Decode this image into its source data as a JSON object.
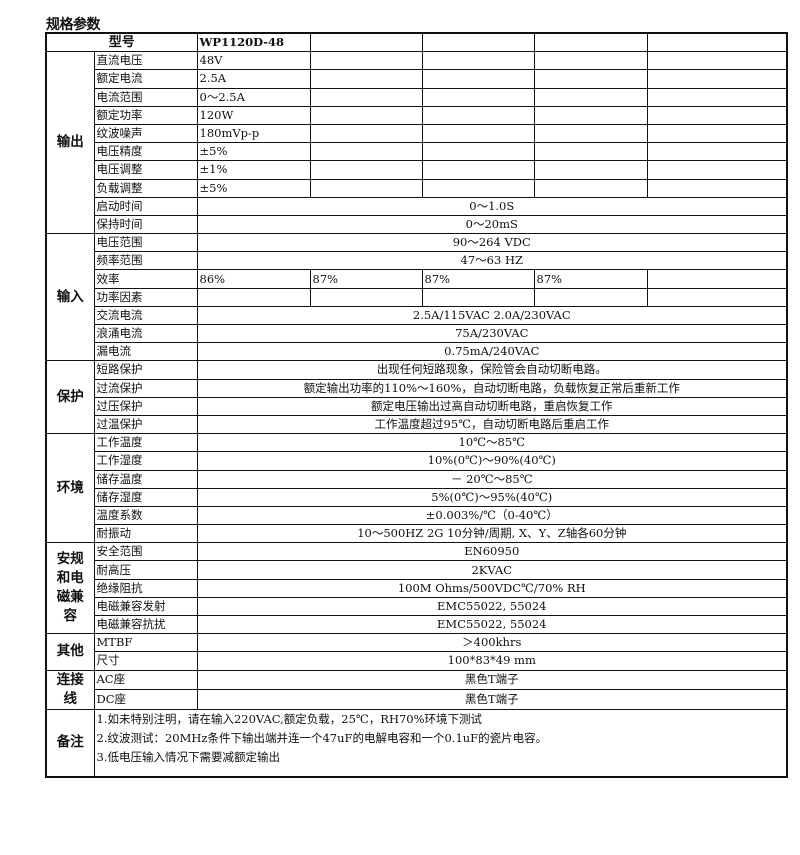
{
  "title": "规格参数",
  "header": {
    "label": "型号",
    "models": [
      "WP1120D-48",
      "",
      "",
      "",
      ""
    ]
  },
  "groups": [
    {
      "label": "输出",
      "rows": [
        {
          "label": "直流电压",
          "cells": [
            "48V",
            "",
            "",
            "",
            ""
          ]
        },
        {
          "label": "额定电流",
          "cells": [
            "2.5A",
            "",
            "",
            "",
            ""
          ]
        },
        {
          "label": "电流范围",
          "cells": [
            "0～2.5A",
            "",
            "",
            "",
            ""
          ]
        },
        {
          "label": "额定功率",
          "cells": [
            "120W",
            "",
            "",
            "",
            ""
          ]
        },
        {
          "label": "纹波噪声",
          "cells": [
            "180mVp-p",
            "",
            "",
            "",
            ""
          ]
        },
        {
          "label": "电压精度",
          "cells": [
            "±5%",
            "",
            "",
            "",
            ""
          ]
        },
        {
          "label": "电压调整",
          "cells": [
            "±1%",
            "",
            "",
            "",
            ""
          ]
        },
        {
          "label": "负载调整",
          "cells": [
            "±5%",
            "",
            "",
            "",
            ""
          ]
        },
        {
          "label": "启动时间",
          "value": "0～1.0S"
        },
        {
          "label": "保持时间",
          "value": "0～20mS"
        }
      ]
    },
    {
      "label": "输入",
      "rows": [
        {
          "label": "电压范围",
          "value": "90～264 VDC"
        },
        {
          "label": "频率范围",
          "value": "47～63 HZ"
        },
        {
          "label": "效率",
          "cells": [
            "86%",
            "87%",
            "87%",
            "87%",
            ""
          ]
        },
        {
          "label": "功率因素",
          "cells": [
            "",
            "",
            "",
            "",
            ""
          ]
        },
        {
          "label": "交流电流",
          "value": "2.5A/115VAC  2.0A/230VAC"
        },
        {
          "label": "浪涌电流",
          "value": "75A/230VAC"
        },
        {
          "label": "漏电流",
          "value": "0.75mA/240VAC"
        }
      ]
    },
    {
      "label": "保护",
      "rows": [
        {
          "label": "短路保护",
          "value": "出现任何短路现象，保险管会自动切断电路。"
        },
        {
          "label": "过流保护",
          "value": "额定输出功率的110%～160%，自动切断电路，负载恢复正常后重新工作"
        },
        {
          "label": "过压保护",
          "value": "额定电压输出过高自动切断电路，重启恢复工作"
        },
        {
          "label": "过温保护",
          "value": "工作温度超过95℃，自动切断电路后重启工作"
        }
      ]
    },
    {
      "label": "环境",
      "rows": [
        {
          "label": "工作温度",
          "value": "10℃～85℃"
        },
        {
          "label": "工作湿度",
          "value": "10%(0℃)～90%(40℃)"
        },
        {
          "label": "储存温度",
          "value": "－ 20℃～85℃"
        },
        {
          "label": "储存湿度",
          "value": "5%(0℃)～95%(40℃)"
        },
        {
          "label": "温度系数",
          "value": "±0.003%/℃（0-40℃）"
        },
        {
          "label": "耐振动",
          "value": "10～500HZ 2G 10分钟/周期, X、Y、Z轴各60分钟"
        }
      ]
    },
    {
      "label": "安规和电磁兼容",
      "rows": [
        {
          "label": "安全范围",
          "value": "EN60950"
        },
        {
          "label": "耐高压",
          "value": "2KVAC"
        },
        {
          "label": "绝缘阻抗",
          "value": "100M Ohms/500VDC℃/70% RH"
        },
        {
          "label": "电磁兼容发射",
          "value": "EMC55022, 55024"
        },
        {
          "label": "电磁兼容抗扰",
          "value": "EMC55022, 55024"
        }
      ]
    },
    {
      "label": "其他",
      "rows": [
        {
          "label": "MTBF",
          "value": "＞400khrs"
        },
        {
          "label": "尺寸",
          "value": "100*83*49 mm"
        }
      ]
    },
    {
      "label": "连接线",
      "rows": [
        {
          "label": "AC座",
          "value": "黑色T端子"
        },
        {
          "label": "DC座",
          "value": "黑色T端子"
        }
      ]
    }
  ],
  "notes": {
    "label": "备注",
    "lines": [
      "1.如未特别注明，请在输入220VAC,额定负载，25℃，RH70%环境下测试",
      "2.纹波测试：20MHz条件下输出端并连一个47uF的电解电容和一个0.1uF的瓷片电容。",
      "3.低电压输入情况下需要减额定输出"
    ]
  }
}
